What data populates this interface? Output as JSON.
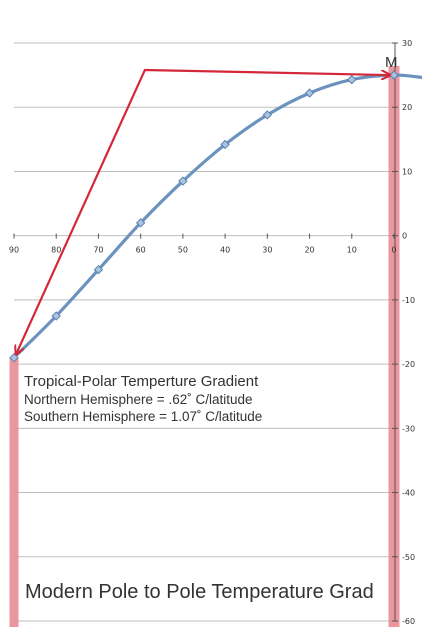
{
  "chart_data": {
    "type": "line",
    "title": "Modern Pole to Pole Temperature Grad",
    "corner_label": "M",
    "annotation": {
      "heading": "Tropical-Polar Temperture Gradient",
      "lines": [
        "Northern Hemisphere = .62˚ C/latitude",
        "Southern Hemisphere = 1.07˚ C/latitude"
      ]
    },
    "x_ticks": [
      "90",
      "80",
      "70",
      "60",
      "50",
      "40",
      "30",
      "20",
      "10",
      "0"
    ],
    "y_ticks": [
      "30",
      "20",
      "10",
      "0",
      "-10",
      "-20",
      "-30",
      "-40",
      "-50",
      "-60"
    ],
    "xlim": [
      90,
      -7
    ],
    "ylim": [
      -60,
      30
    ],
    "grid": true,
    "series": [
      {
        "values_x": [
          90,
          80,
          70,
          60,
          50,
          40,
          30,
          20,
          10,
          0
        ],
        "values_y": [
          -19,
          -12.5,
          -5.3,
          2,
          8.5,
          14.2,
          18.8,
          22.2,
          24.3,
          25
        ]
      }
    ],
    "curve_extension": {
      "x": -7,
      "y": 24.6
    },
    "arrows": [
      {
        "from": [
          0,
          25
        ],
        "via": [
          59,
          25.8
        ],
        "to": [
          90,
          -18.8
        ]
      }
    ],
    "highlight_bands_x": [
      90,
      0
    ],
    "colors": {
      "line": "#6b93bd",
      "marker_fill": "#a9c4e0",
      "marker_stroke": "#5b80ab",
      "arrow": "#d3273a",
      "band": "#e8858f",
      "grid": "#bfbfbf",
      "axis": "#555555"
    }
  }
}
